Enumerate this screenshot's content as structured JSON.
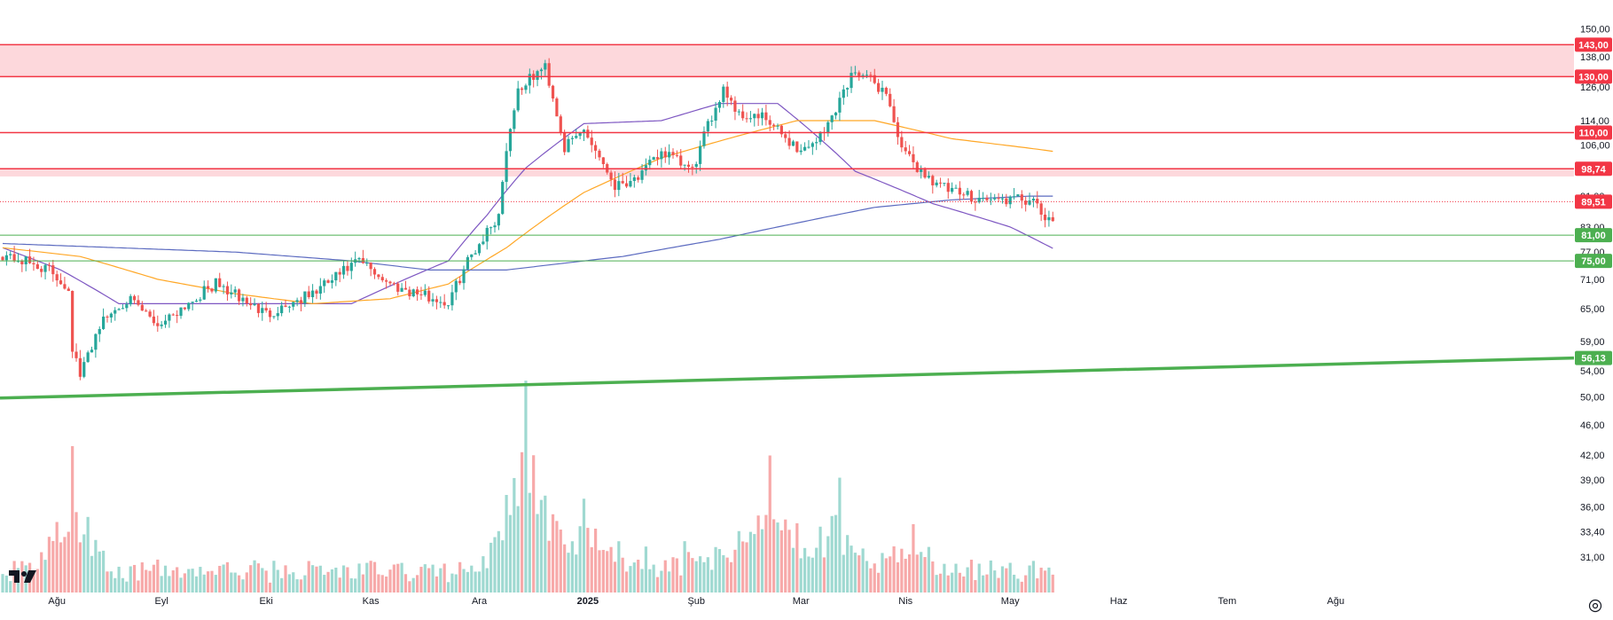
{
  "chart_data": {
    "type": "candlestick",
    "title": "",
    "x_ticks": [
      {
        "label": "Ağu",
        "bold": false
      },
      {
        "label": "Eyl",
        "bold": false
      },
      {
        "label": "Eki",
        "bold": false
      },
      {
        "label": "Kas",
        "bold": false
      },
      {
        "label": "Ara",
        "bold": false
      },
      {
        "label": "2025",
        "bold": true
      },
      {
        "label": "Şub",
        "bold": false
      },
      {
        "label": "Mar",
        "bold": false
      },
      {
        "label": "Nis",
        "bold": false
      },
      {
        "label": "May",
        "bold": false
      },
      {
        "label": "Haz",
        "bold": false
      },
      {
        "label": "Tem",
        "bold": false
      },
      {
        "label": "Ağu",
        "bold": false
      }
    ],
    "y_ticks": [
      "150,00",
      "138,00",
      "126,00",
      "114,00",
      "106,00",
      "91,00",
      "83,00",
      "77,00",
      "71,00",
      "65,00",
      "59,00",
      "54,00",
      "50,00",
      "46,00",
      "42,00",
      "39,00",
      "36,00",
      "33,40",
      "31,00"
    ],
    "y_scale": "log",
    "ylim": [
      29,
      155
    ],
    "levels": [
      {
        "label": "143,00",
        "value": 143.0,
        "color": "#f23645",
        "style": "solid"
      },
      {
        "label": "130,00",
        "value": 130.0,
        "color": "#f23645",
        "style": "solid"
      },
      {
        "label": "110,00",
        "value": 110.0,
        "color": "#f23645",
        "style": "solid"
      },
      {
        "label": "98,74",
        "value": 98.74,
        "color": "#f23645",
        "style": "solid"
      },
      {
        "label": "89,51",
        "value": 89.51,
        "color": "#f23645",
        "style": "dotted"
      },
      {
        "label": "81,00",
        "value": 81.0,
        "color": "#4caf50",
        "style": "solid"
      },
      {
        "label": "75,00",
        "value": 75.0,
        "color": "#4caf50",
        "style": "solid"
      },
      {
        "label": "56,13",
        "value": 56.13,
        "color": "#4caf50",
        "style": "trendline"
      }
    ],
    "zones": [
      {
        "from": 130.0,
        "to": 143.0,
        "color": "#fdd8dc"
      },
      {
        "from": 96.5,
        "to": 98.74,
        "color": "#fdd8dc"
      }
    ],
    "trendline": {
      "start_value": 49.8,
      "end_value": 56.13,
      "color": "#4caf50"
    },
    "series": [
      {
        "type": "candles",
        "up_color": "#26a69a",
        "down_color": "#ef5350",
        "points": 272,
        "close_path": [
          [
            0,
            76.5
          ],
          [
            12,
            73
          ],
          [
            17,
            69
          ],
          [
            18,
            58
          ],
          [
            20,
            53
          ],
          [
            25,
            62
          ],
          [
            32,
            67
          ],
          [
            40,
            62
          ],
          [
            55,
            70
          ],
          [
            68,
            64
          ],
          [
            80,
            68
          ],
          [
            92,
            75
          ],
          [
            100,
            70
          ],
          [
            115,
            66
          ],
          [
            120,
            75
          ],
          [
            128,
            86
          ],
          [
            130,
            105
          ],
          [
            133,
            125
          ],
          [
            140,
            134
          ],
          [
            145,
            105
          ],
          [
            150,
            111
          ],
          [
            158,
            94
          ],
          [
            165,
            97
          ],
          [
            170,
            104
          ],
          [
            178,
            98
          ],
          [
            186,
            126
          ],
          [
            190,
            116
          ],
          [
            196,
            115
          ],
          [
            206,
            104
          ],
          [
            212,
            110
          ],
          [
            220,
            133
          ],
          [
            228,
            124
          ],
          [
            232,
            104
          ],
          [
            238,
            97
          ],
          [
            245,
            92
          ],
          [
            255,
            90
          ],
          [
            265,
            90
          ],
          [
            270,
            84
          ],
          [
            275,
            82
          ],
          [
            280,
            70
          ],
          [
            288,
            77
          ],
          [
            295,
            85
          ],
          [
            305,
            89
          ],
          [
            312,
            87
          ],
          [
            318,
            89
          ],
          [
            322,
            100
          ],
          [
            330,
            97
          ],
          [
            335,
            93
          ],
          [
            340,
            84
          ],
          [
            345,
            86
          ],
          [
            348,
            88
          ]
        ]
      },
      {
        "type": "line",
        "color": "#7e57c2",
        "path": [
          [
            0,
            78
          ],
          [
            15,
            73
          ],
          [
            30,
            66
          ],
          [
            60,
            66
          ],
          [
            90,
            66
          ],
          [
            115,
            75
          ],
          [
            125,
            86
          ],
          [
            135,
            99
          ],
          [
            150,
            113
          ],
          [
            170,
            114
          ],
          [
            185,
            120
          ],
          [
            200,
            120
          ],
          [
            210,
            109
          ],
          [
            220,
            98
          ],
          [
            240,
            89
          ],
          [
            260,
            83
          ],
          [
            275,
            76
          ],
          [
            290,
            80
          ],
          [
            305,
            85
          ],
          [
            320,
            85
          ],
          [
            335,
            87
          ],
          [
            348,
            90
          ]
        ]
      },
      {
        "type": "line",
        "color": "#ffa726",
        "path": [
          [
            0,
            78
          ],
          [
            20,
            76
          ],
          [
            40,
            71
          ],
          [
            60,
            68
          ],
          [
            80,
            66
          ],
          [
            100,
            67
          ],
          [
            115,
            70
          ],
          [
            130,
            78
          ],
          [
            150,
            92
          ],
          [
            170,
            102
          ],
          [
            190,
            109
          ],
          [
            205,
            114
          ],
          [
            225,
            114
          ],
          [
            245,
            108
          ],
          [
            265,
            105
          ],
          [
            290,
            101
          ],
          [
            310,
            99
          ],
          [
            325,
            98
          ],
          [
            335,
            96
          ],
          [
            348,
            93
          ]
        ]
      },
      {
        "type": "line",
        "color": "#5c6bc0",
        "path": [
          [
            0,
            79
          ],
          [
            30,
            78
          ],
          [
            60,
            77
          ],
          [
            90,
            75
          ],
          [
            110,
            73
          ],
          [
            130,
            73
          ],
          [
            160,
            76
          ],
          [
            185,
            80
          ],
          [
            205,
            84
          ],
          [
            225,
            88
          ],
          [
            245,
            90
          ],
          [
            265,
            91
          ],
          [
            285,
            91
          ],
          [
            305,
            91
          ],
          [
            325,
            92
          ],
          [
            348,
            92
          ]
        ]
      },
      {
        "type": "volume",
        "points": 272,
        "peaks": [
          [
            18,
            0.75
          ],
          [
            130,
            0.5
          ],
          [
            135,
            1.0
          ],
          [
            150,
            0.45
          ],
          [
            198,
            0.65
          ],
          [
            216,
            0.55
          ],
          [
            235,
            0.35
          ],
          [
            285,
            0.3
          ]
        ]
      }
    ]
  }
}
